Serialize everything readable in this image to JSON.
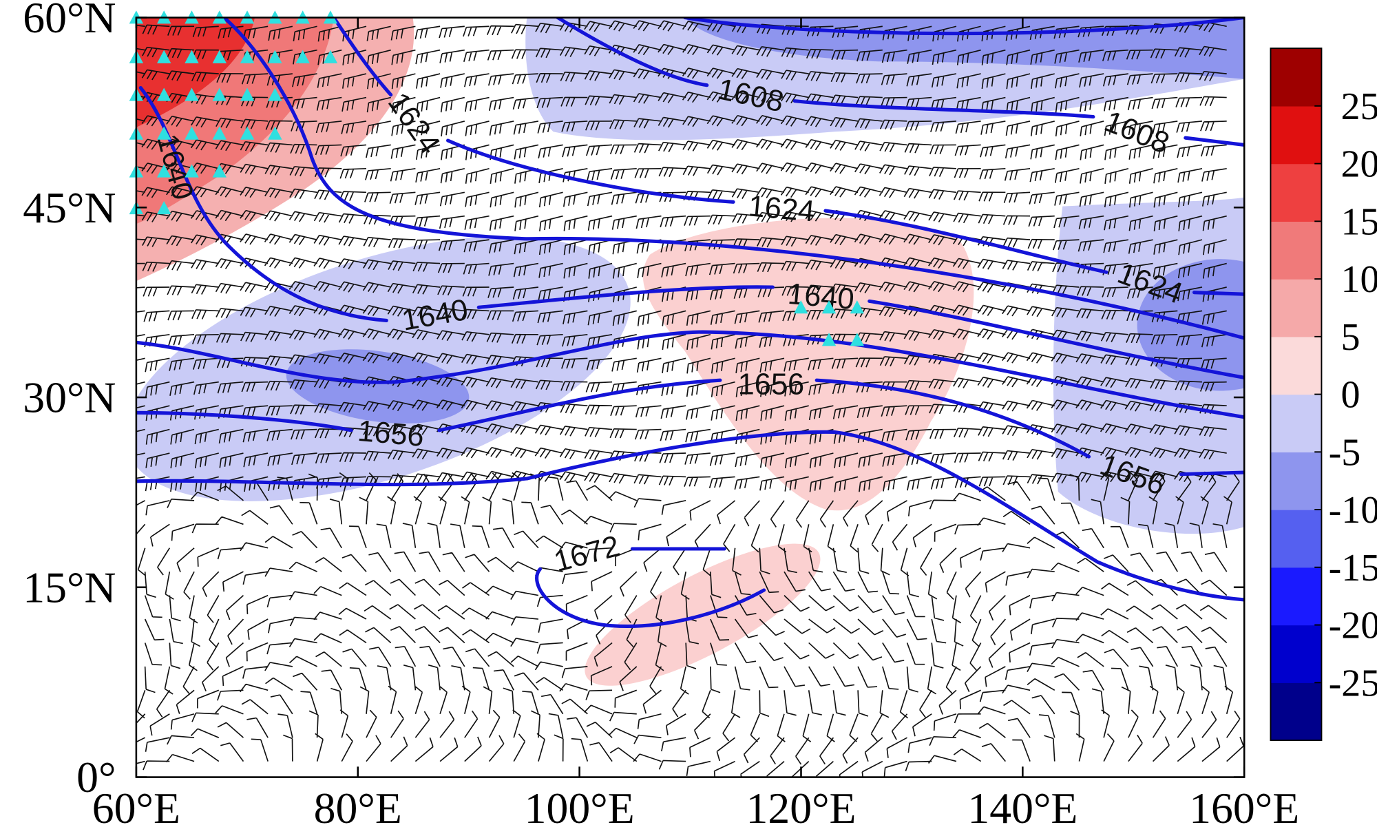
{
  "chart_data": {
    "type": "map",
    "xlim": [
      60,
      160
    ],
    "ylim": [
      0,
      60
    ],
    "xticks": [
      {
        "value": 60,
        "label": "60°E"
      },
      {
        "value": 80,
        "label": "80°E"
      },
      {
        "value": 100,
        "label": "100°E"
      },
      {
        "value": 120,
        "label": "120°E"
      },
      {
        "value": 140,
        "label": "140°E"
      },
      {
        "value": 160,
        "label": "160°E"
      }
    ],
    "yticks": [
      {
        "value": 0,
        "label": "0°"
      },
      {
        "value": 15,
        "label": "15°N"
      },
      {
        "value": 30,
        "label": "30°N"
      },
      {
        "value": 45,
        "label": "45°N"
      },
      {
        "value": 60,
        "label": "60°N"
      }
    ],
    "contour_labels": [
      1608,
      1608,
      1624,
      1624,
      1624,
      1640,
      1640,
      1640,
      1656,
      1656,
      1656,
      1672
    ],
    "contour_color": "#1414d8",
    "colorbar": {
      "lim": [
        -30,
        30
      ],
      "ticks": [
        -25,
        -20,
        -15,
        -10,
        -5,
        0,
        5,
        10,
        15,
        20,
        25
      ],
      "colors": [
        "#00008b",
        "#0000cd",
        "#1a1aff",
        "#5560f0",
        "#8e95ee",
        "#c9cbf6",
        "#fbdada",
        "#f5a9a9",
        "#f07a7a",
        "#ee4040",
        "#e01010",
        "#9e0000"
      ]
    }
  }
}
